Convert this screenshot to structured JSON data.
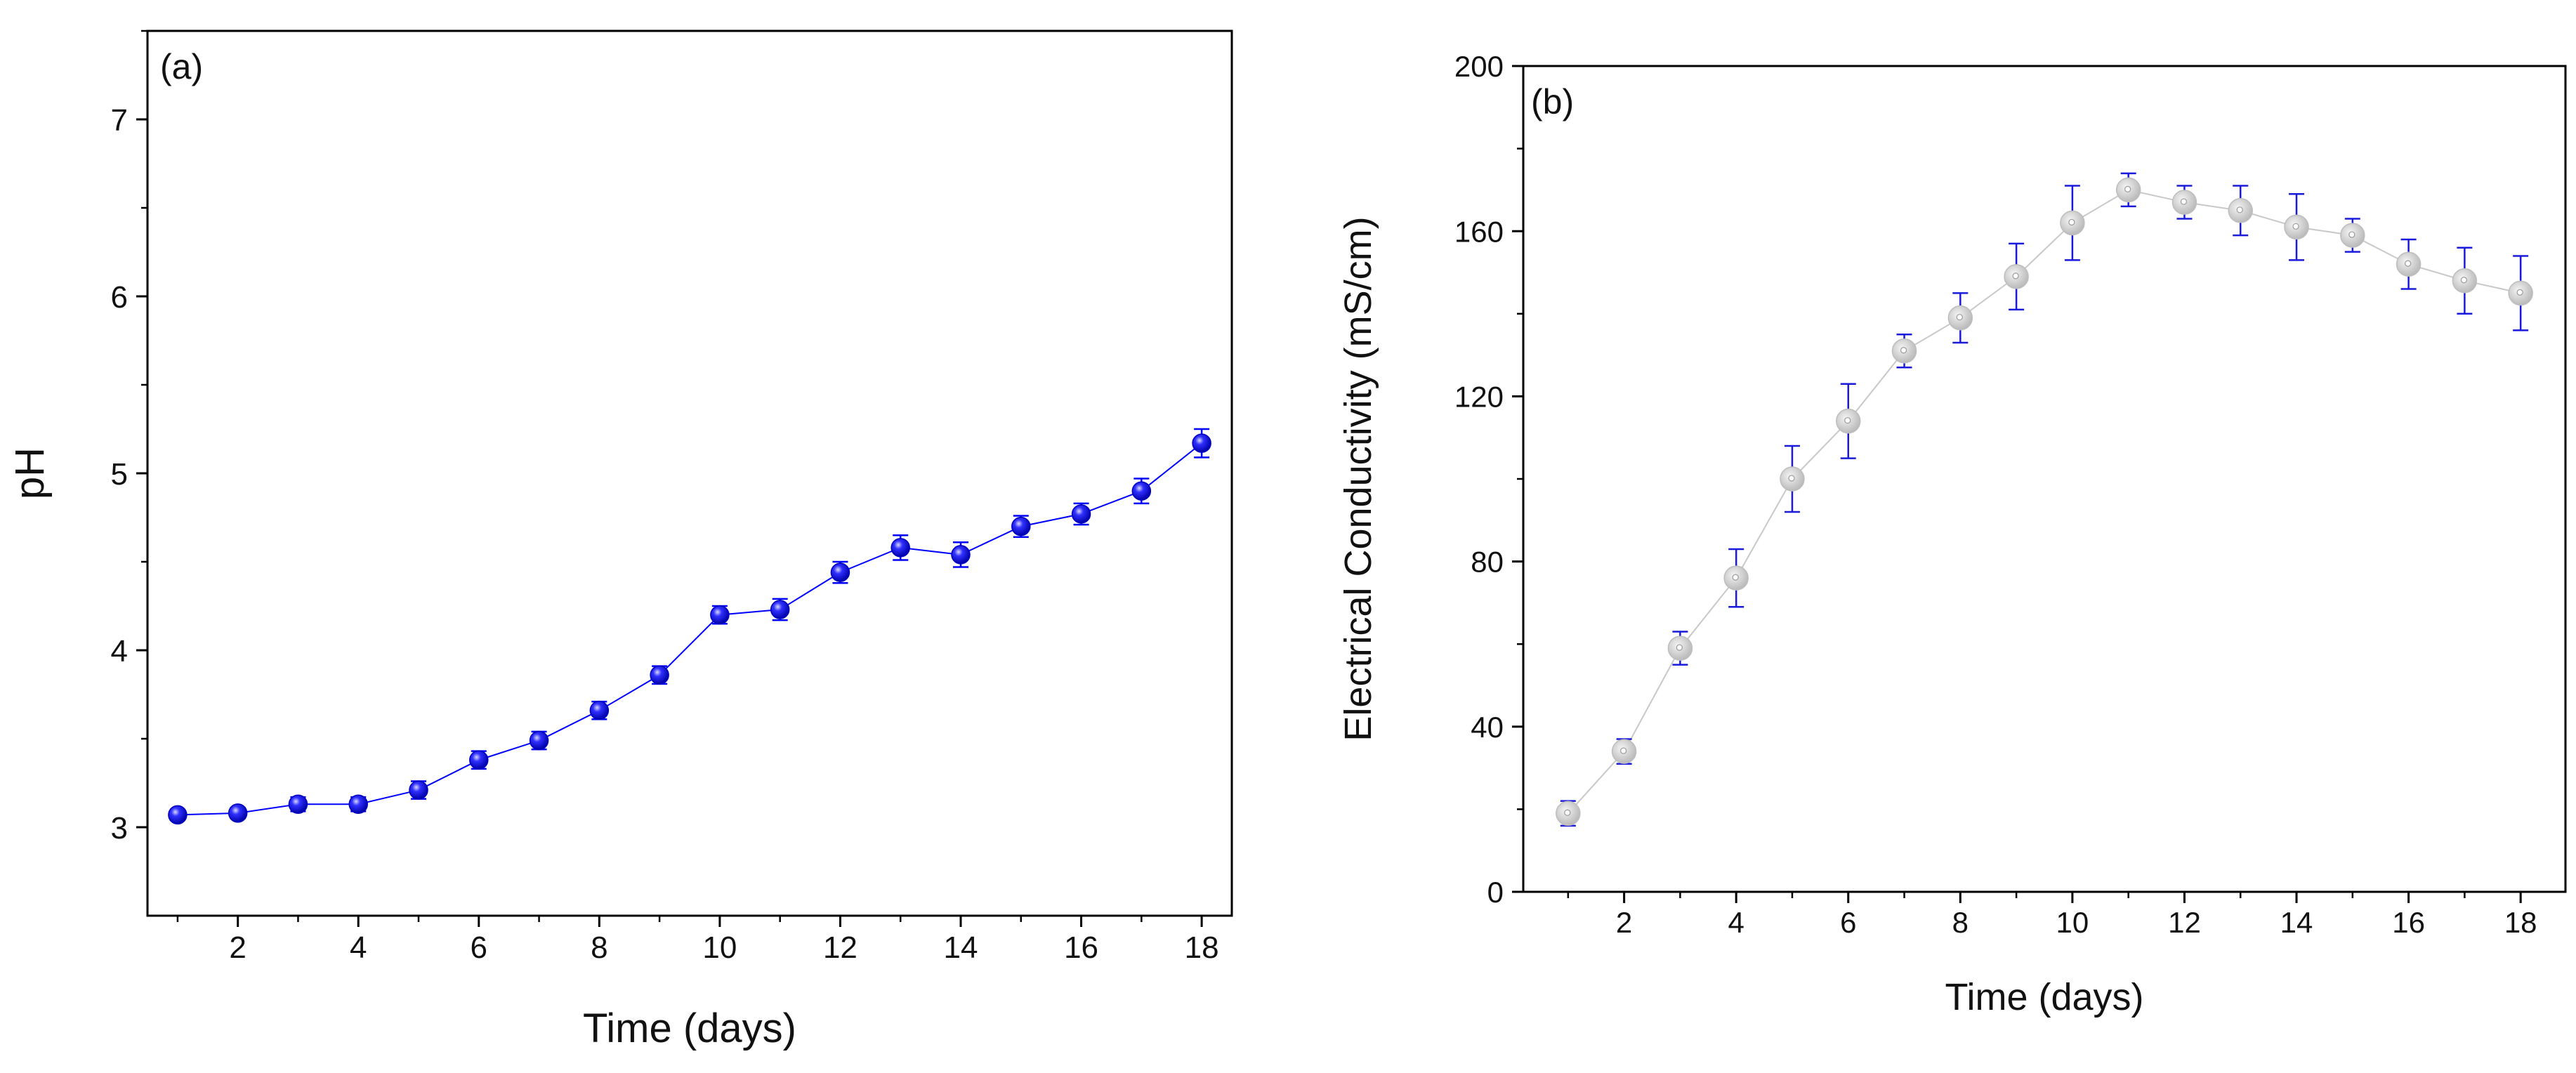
{
  "figure": {
    "description_none": true
  },
  "chart_data": [
    {
      "panel_label": "(a)",
      "type": "line",
      "title": "",
      "xlabel": "Time (days)",
      "ylabel": "pH",
      "xlim": [
        0.5,
        18.5
      ],
      "ylim": [
        2.5,
        7.5
      ],
      "x_ticks": [
        2,
        4,
        6,
        8,
        10,
        12,
        14,
        16,
        18
      ],
      "x_tick_labels": [
        "2",
        "4",
        "6",
        "8",
        "10",
        "12",
        "14",
        "16",
        "18"
      ],
      "y_ticks": [
        3,
        4,
        5,
        6,
        7
      ],
      "y_tick_labels": [
        "3",
        "4",
        "5",
        "6",
        "7"
      ],
      "grid": false,
      "series": [
        {
          "name": "pH",
          "color": "#0000ff",
          "marker_color": "#1a1aff",
          "x": [
            1,
            2,
            3,
            4,
            5,
            6,
            7,
            8,
            9,
            10,
            11,
            12,
            13,
            14,
            15,
            16,
            17,
            18
          ],
          "y": [
            3.07,
            3.08,
            3.13,
            3.13,
            3.21,
            3.38,
            3.49,
            3.66,
            3.86,
            4.2,
            4.23,
            4.44,
            4.58,
            4.54,
            4.7,
            4.77,
            4.9,
            5.17
          ],
          "error": [
            0.03,
            0.03,
            0.04,
            0.04,
            0.05,
            0.05,
            0.05,
            0.05,
            0.05,
            0.05,
            0.06,
            0.06,
            0.07,
            0.07,
            0.06,
            0.06,
            0.07,
            0.08
          ]
        }
      ]
    },
    {
      "panel_label": "(b)",
      "type": "line",
      "title": "",
      "xlabel": "Time (days)",
      "ylabel": "Electrical Conductivity (mS/cm)",
      "xlim": [
        0.2,
        18.8
      ],
      "ylim": [
        0,
        200
      ],
      "x_ticks": [
        2,
        4,
        6,
        8,
        10,
        12,
        14,
        16,
        18
      ],
      "x_tick_labels": [
        "2",
        "4",
        "6",
        "8",
        "10",
        "12",
        "14",
        "16",
        "18"
      ],
      "y_ticks": [
        0,
        40,
        80,
        120,
        160,
        200
      ],
      "y_tick_labels": [
        "0",
        "40",
        "80",
        "120",
        "160",
        "200"
      ],
      "grid": false,
      "series": [
        {
          "name": "Electrical Conductivity",
          "color": "#c8c8c8",
          "marker_color": "#cccccc",
          "error_color": "#1a1add",
          "x": [
            1,
            2,
            3,
            4,
            5,
            6,
            7,
            8,
            9,
            10,
            11,
            12,
            13,
            14,
            15,
            16,
            17,
            18
          ],
          "y": [
            19,
            34,
            59,
            76,
            100,
            114,
            131,
            139,
            149,
            162,
            170,
            167,
            165,
            161,
            159,
            152,
            148,
            145
          ],
          "error": [
            3,
            3,
            4,
            7,
            8,
            9,
            4,
            6,
            8,
            9,
            4,
            4,
            6,
            8,
            4,
            6,
            8,
            9
          ]
        }
      ]
    }
  ]
}
